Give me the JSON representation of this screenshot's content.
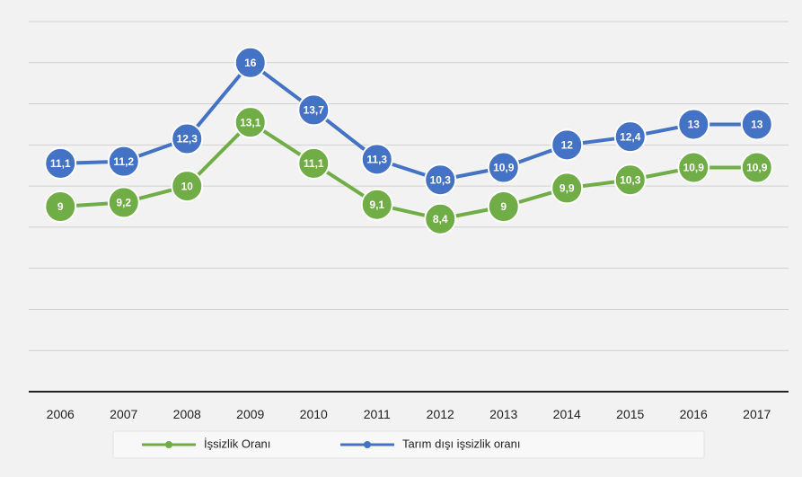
{
  "chart_data": {
    "type": "line",
    "x": [
      "2006",
      "2007",
      "2008",
      "2009",
      "2010",
      "2011",
      "2012",
      "2013",
      "2014",
      "2015",
      "2016",
      "2017"
    ],
    "series": [
      {
        "name": "İşsizlik Oranı",
        "values": [
          9,
          9.2,
          10,
          13.1,
          11.1,
          9.1,
          8.4,
          9,
          9.9,
          10.3,
          10.9,
          10.9
        ],
        "labels": [
          "9",
          "9,2",
          "10",
          "13,1",
          "11,1",
          "9,1",
          "8,4",
          "9",
          "9,9",
          "10,3",
          "10,9",
          "10,9"
        ],
        "color": "#70ad47"
      },
      {
        "name": "Tarım dışı işsizlik oranı",
        "values": [
          11.1,
          11.2,
          12.3,
          16,
          13.7,
          11.3,
          10.3,
          10.9,
          12,
          12.4,
          13,
          13
        ],
        "labels": [
          "11,1",
          "11,2",
          "12,3",
          "16",
          "13,7",
          "11,3",
          "10,3",
          "10,9",
          "12",
          "12,4",
          "13",
          "13"
        ],
        "color": "#4472c4"
      }
    ],
    "ylim": [
      0,
      18
    ],
    "grid": true,
    "legend_position": "bottom"
  }
}
